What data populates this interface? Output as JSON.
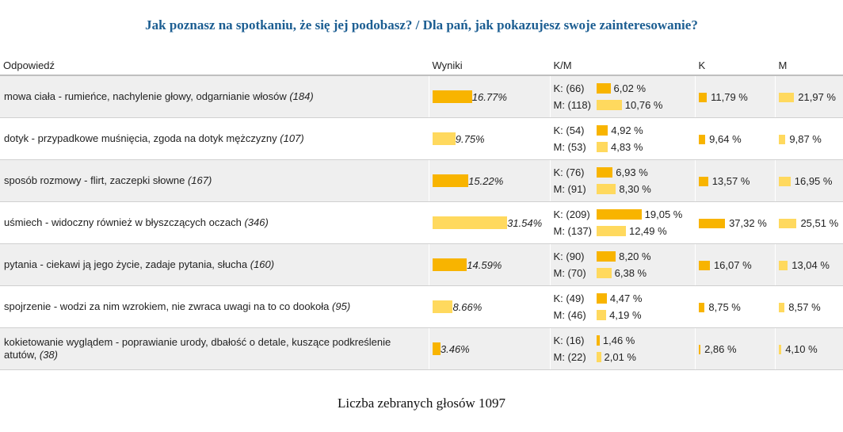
{
  "title": "Jak poznasz na spotkaniu, że się jej podobasz? / Dla pań, jak pokazujesz swoje zainteresowanie?",
  "headers": {
    "answer": "Odpowiedź",
    "results": "Wyniki",
    "km": "K/M",
    "k": "K",
    "m": "M"
  },
  "colors": {
    "k_bar": "#f8b400",
    "m_bar": "#ffd95e",
    "title": "#1c5e92"
  },
  "rows": [
    {
      "answer": "mowa ciała - rumieńce, nachylenie głowy, odgarnianie włosów",
      "count": "(184)",
      "result": "16.77%",
      "result_value": 16.77,
      "result_color": "k",
      "k_label": "K: (66)",
      "k_pct": "6,02 %",
      "k_value": 6.02,
      "m_label": "M: (118)",
      "m_pct": "10,76 %",
      "m_value": 10.76,
      "k_share": "11,79 %",
      "k_share_value": 11.79,
      "m_share": "21,97 %",
      "m_share_value": 21.97
    },
    {
      "answer": "dotyk - przypadkowe muśnięcia, zgoda na dotyk mężczyzny",
      "count": "(107)",
      "result": "9.75%",
      "result_value": 9.75,
      "result_color": "m",
      "k_label": "K: (54)",
      "k_pct": "4,92 %",
      "k_value": 4.92,
      "m_label": "M: (53)",
      "m_pct": "4,83 %",
      "m_value": 4.83,
      "k_share": "9,64 %",
      "k_share_value": 9.64,
      "m_share": "9,87 %",
      "m_share_value": 9.87
    },
    {
      "answer": "sposób rozmowy - flirt, zaczepki słowne",
      "count": "(167)",
      "result": "15.22%",
      "result_value": 15.22,
      "result_color": "k",
      "k_label": "K: (76)",
      "k_pct": "6,93 %",
      "k_value": 6.93,
      "m_label": "M: (91)",
      "m_pct": "8,30 %",
      "m_value": 8.3,
      "k_share": "13,57 %",
      "k_share_value": 13.57,
      "m_share": "16,95 %",
      "m_share_value": 16.95
    },
    {
      "answer": "uśmiech - widoczny również w błyszczących oczach",
      "count": "(346)",
      "result": "31.54%",
      "result_value": 31.54,
      "result_color": "m",
      "k_label": "K: (209)",
      "k_pct": "19,05 %",
      "k_value": 19.05,
      "m_label": "M: (137)",
      "m_pct": "12,49 %",
      "m_value": 12.49,
      "k_share": "37,32 %",
      "k_share_value": 37.32,
      "m_share": "25,51 %",
      "m_share_value": 25.51
    },
    {
      "answer": "pytania - ciekawi ją jego życie, zadaje pytania, słucha",
      "count": "(160)",
      "result": "14.59%",
      "result_value": 14.59,
      "result_color": "k",
      "k_label": "K: (90)",
      "k_pct": "8,20 %",
      "k_value": 8.2,
      "m_label": "M: (70)",
      "m_pct": "6,38 %",
      "m_value": 6.38,
      "k_share": "16,07 %",
      "k_share_value": 16.07,
      "m_share": "13,04 %",
      "m_share_value": 13.04
    },
    {
      "answer": "spojrzenie - wodzi za nim wzrokiem, nie zwraca uwagi na to co dookoła",
      "count": "(95)",
      "result": "8.66%",
      "result_value": 8.66,
      "result_color": "m",
      "k_label": "K: (49)",
      "k_pct": "4,47 %",
      "k_value": 4.47,
      "m_label": "M: (46)",
      "m_pct": "4,19 %",
      "m_value": 4.19,
      "k_share": "8,75 %",
      "k_share_value": 8.75,
      "m_share": "8,57 %",
      "m_share_value": 8.57
    },
    {
      "answer": "kokietowanie wyglądem - poprawianie urody, dbałość o detale, kuszące podkreślenie atutów,",
      "count": "(38)",
      "result": "3.46%",
      "result_value": 3.46,
      "result_color": "k",
      "k_label": "K: (16)",
      "k_pct": "1,46 %",
      "k_value": 1.46,
      "m_label": "M: (22)",
      "m_pct": "2,01 %",
      "m_value": 2.01,
      "k_share": "2,86 %",
      "k_share_value": 2.86,
      "m_share": "4,10 %",
      "m_share_value": 4.1
    }
  ],
  "footer": "Liczba zebranych głosów 1097"
}
